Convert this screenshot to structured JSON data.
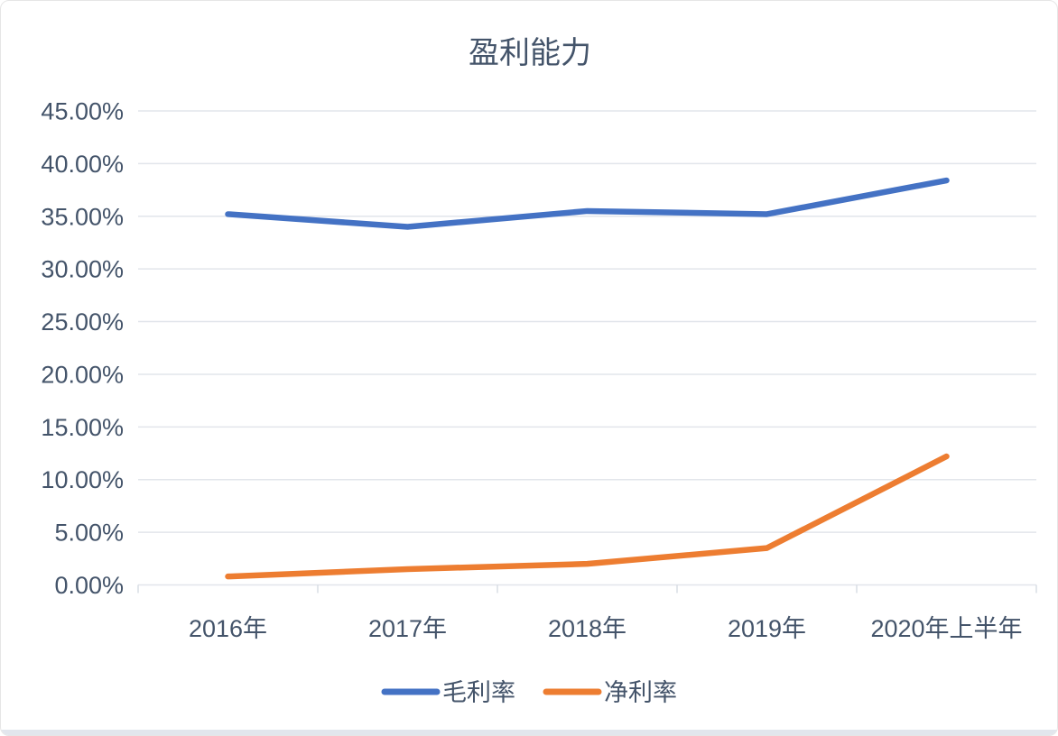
{
  "page": {
    "background": "#ffffff",
    "border_color": "#e6e6e6",
    "bottom_strip_color": "#e2e6ed"
  },
  "chart_data": {
    "type": "line",
    "title": "盈利能力",
    "categories": [
      "2016年",
      "2017年",
      "2018年",
      "2019年",
      "2020年上半年"
    ],
    "series": [
      {
        "name": "毛利率",
        "color": "#4472C4",
        "values": [
          35.2,
          34.0,
          35.5,
          35.2,
          38.4
        ]
      },
      {
        "name": "净利率",
        "color": "#ED7D31",
        "values": [
          0.8,
          1.5,
          2.0,
          3.5,
          12.2
        ]
      }
    ],
    "y_axis": {
      "min": 0,
      "max": 45,
      "step": 5,
      "tick_labels": [
        "0.00%",
        "5.00%",
        "10.00%",
        "15.00%",
        "20.00%",
        "25.00%",
        "30.00%",
        "35.00%",
        "40.00%",
        "45.00%"
      ]
    },
    "legend": {
      "position": "bottom",
      "entries": [
        "毛利率",
        "净利率"
      ]
    },
    "grid": true,
    "text_color": "#44546A",
    "gridline_color": "#E2E5EB",
    "axis_tick_color": "#D9DDE4"
  }
}
